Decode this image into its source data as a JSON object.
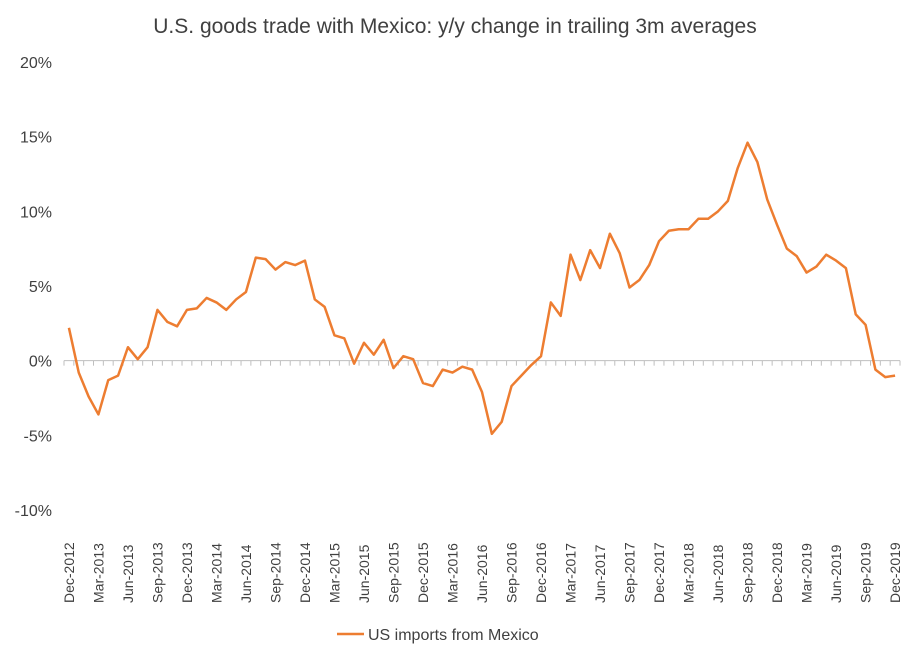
{
  "colors": {
    "series": "#ED7D31",
    "axis": "#BFBFBF",
    "text": "#404040"
  },
  "chart_data": {
    "type": "line",
    "title": "U.S. goods trade with Mexico: y/y change in trailing 3m averages",
    "ylim": [
      -10,
      20
    ],
    "yticks": [
      -10,
      -5,
      0,
      5,
      10,
      15,
      20
    ],
    "ytick_labels": [
      "-10%",
      "-5%",
      "0%",
      "5%",
      "10%",
      "15%",
      "20%"
    ],
    "grid": false,
    "legend": "bottom",
    "x_start": "Dec-2012",
    "x_tick_labels": [
      "Dec-2012",
      "Mar-2013",
      "Jun-2013",
      "Sep-2013",
      "Dec-2013",
      "Mar-2014",
      "Jun-2014",
      "Sep-2014",
      "Dec-2014",
      "Mar-2015",
      "Jun-2015",
      "Sep-2015",
      "Dec-2015",
      "Mar-2016",
      "Jun-2016",
      "Sep-2016",
      "Dec-2016",
      "Mar-2017",
      "Jun-2017",
      "Sep-2017",
      "Dec-2017",
      "Mar-2018",
      "Jun-2018",
      "Sep-2018",
      "Dec-2018",
      "Mar-2019",
      "Jun-2019",
      "Sep-2019",
      "Dec-2019"
    ],
    "series": [
      {
        "name": "US imports from Mexico",
        "values": [
          2.2,
          -0.8,
          -2.4,
          -3.6,
          -1.3,
          -1.0,
          0.9,
          0.1,
          0.9,
          3.4,
          2.6,
          2.3,
          3.4,
          3.5,
          4.2,
          3.9,
          3.4,
          4.1,
          4.6,
          6.9,
          6.8,
          6.1,
          6.6,
          6.4,
          6.7,
          4.1,
          3.6,
          1.7,
          1.5,
          -0.2,
          1.2,
          0.4,
          1.4,
          -0.5,
          0.3,
          0.1,
          -1.5,
          -1.7,
          -0.6,
          -0.8,
          -0.4,
          -0.6,
          -2.1,
          -4.9,
          -4.1,
          -1.7,
          -1.0,
          -0.3,
          0.3,
          3.9,
          3.0,
          7.1,
          5.4,
          7.4,
          6.2,
          8.5,
          7.2,
          4.9,
          5.4,
          6.4,
          8.0,
          8.7,
          8.8,
          8.8,
          9.5,
          9.5,
          10.0,
          10.7,
          12.9,
          14.6,
          13.3,
          10.8,
          9.1,
          7.5,
          7.0,
          5.9,
          6.3,
          7.1,
          6.7,
          6.2,
          3.1,
          2.4,
          -0.6,
          -1.1,
          -1.0
        ]
      }
    ]
  }
}
